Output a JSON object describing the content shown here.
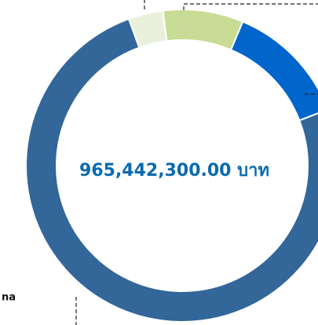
{
  "chart_data": {
    "type": "pie",
    "center_label": "965,442,300.00 บาท",
    "label_fragment": "na",
    "values": [
      3.6,
      8.3,
      12.8,
      75.3
    ],
    "colors": [
      "#e9f1dc",
      "#c8dc95",
      "#0066cc",
      "#336699"
    ]
  }
}
